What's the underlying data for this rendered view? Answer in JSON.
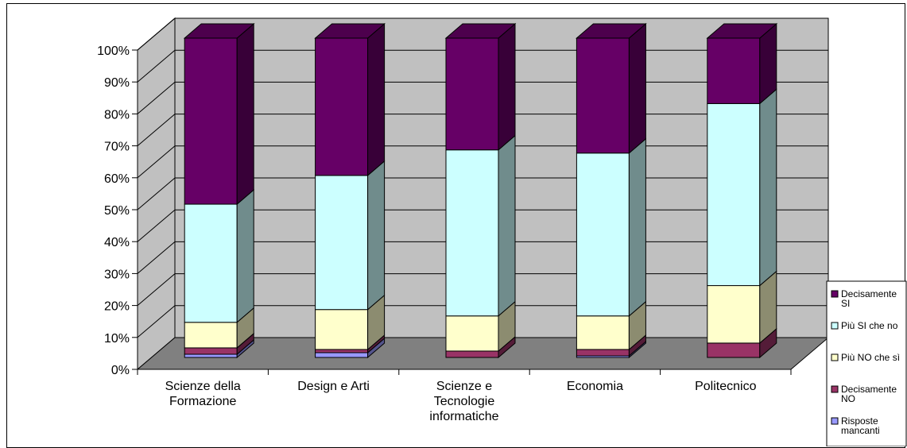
{
  "chart_data": {
    "type": "bar",
    "stacked": true,
    "percent_stacked": true,
    "three_d": true,
    "title": "",
    "xlabel": "",
    "ylabel": "",
    "ylim": [
      0,
      100
    ],
    "y_ticks": [
      "0%",
      "10%",
      "20%",
      "30%",
      "40%",
      "50%",
      "60%",
      "70%",
      "80%",
      "90%",
      "100%"
    ],
    "categories": [
      [
        "Scienze della",
        "Formazione"
      ],
      [
        "Design e Arti"
      ],
      [
        "Scienze e",
        "Tecnologie",
        "informatiche"
      ],
      [
        "Economia"
      ],
      [
        "Politecnico"
      ]
    ],
    "series": [
      {
        "name": "Risposte mancanti",
        "legend_lines": [
          "Risposte",
          "mancanti"
        ],
        "color": "#9999ff",
        "values": [
          1,
          1.5,
          0,
          0.5,
          0
        ]
      },
      {
        "name": "Decisamente NO",
        "legend_lines": [
          "Decisamente",
          "NO"
        ],
        "color": "#993366",
        "values": [
          2,
          1,
          2,
          2,
          4.5
        ]
      },
      {
        "name": "Più NO che sì",
        "legend_lines": [
          "Più NO che sì"
        ],
        "color": "#ffffcc",
        "values": [
          8,
          12.5,
          11,
          10.5,
          18
        ]
      },
      {
        "name": "Più SI che no",
        "legend_lines": [
          "Più SI che no"
        ],
        "color": "#ccffff",
        "values": [
          37,
          42,
          52,
          51,
          57
        ]
      },
      {
        "name": "Decisamente SI",
        "legend_lines": [
          "Decisamente",
          "SI"
        ],
        "color": "#660066",
        "values": [
          52,
          43,
          35,
          36,
          20.5
        ]
      }
    ],
    "legend_position": "right",
    "grid": true,
    "wall_color": "#c0c0c0",
    "floor_color": "#808080"
  }
}
